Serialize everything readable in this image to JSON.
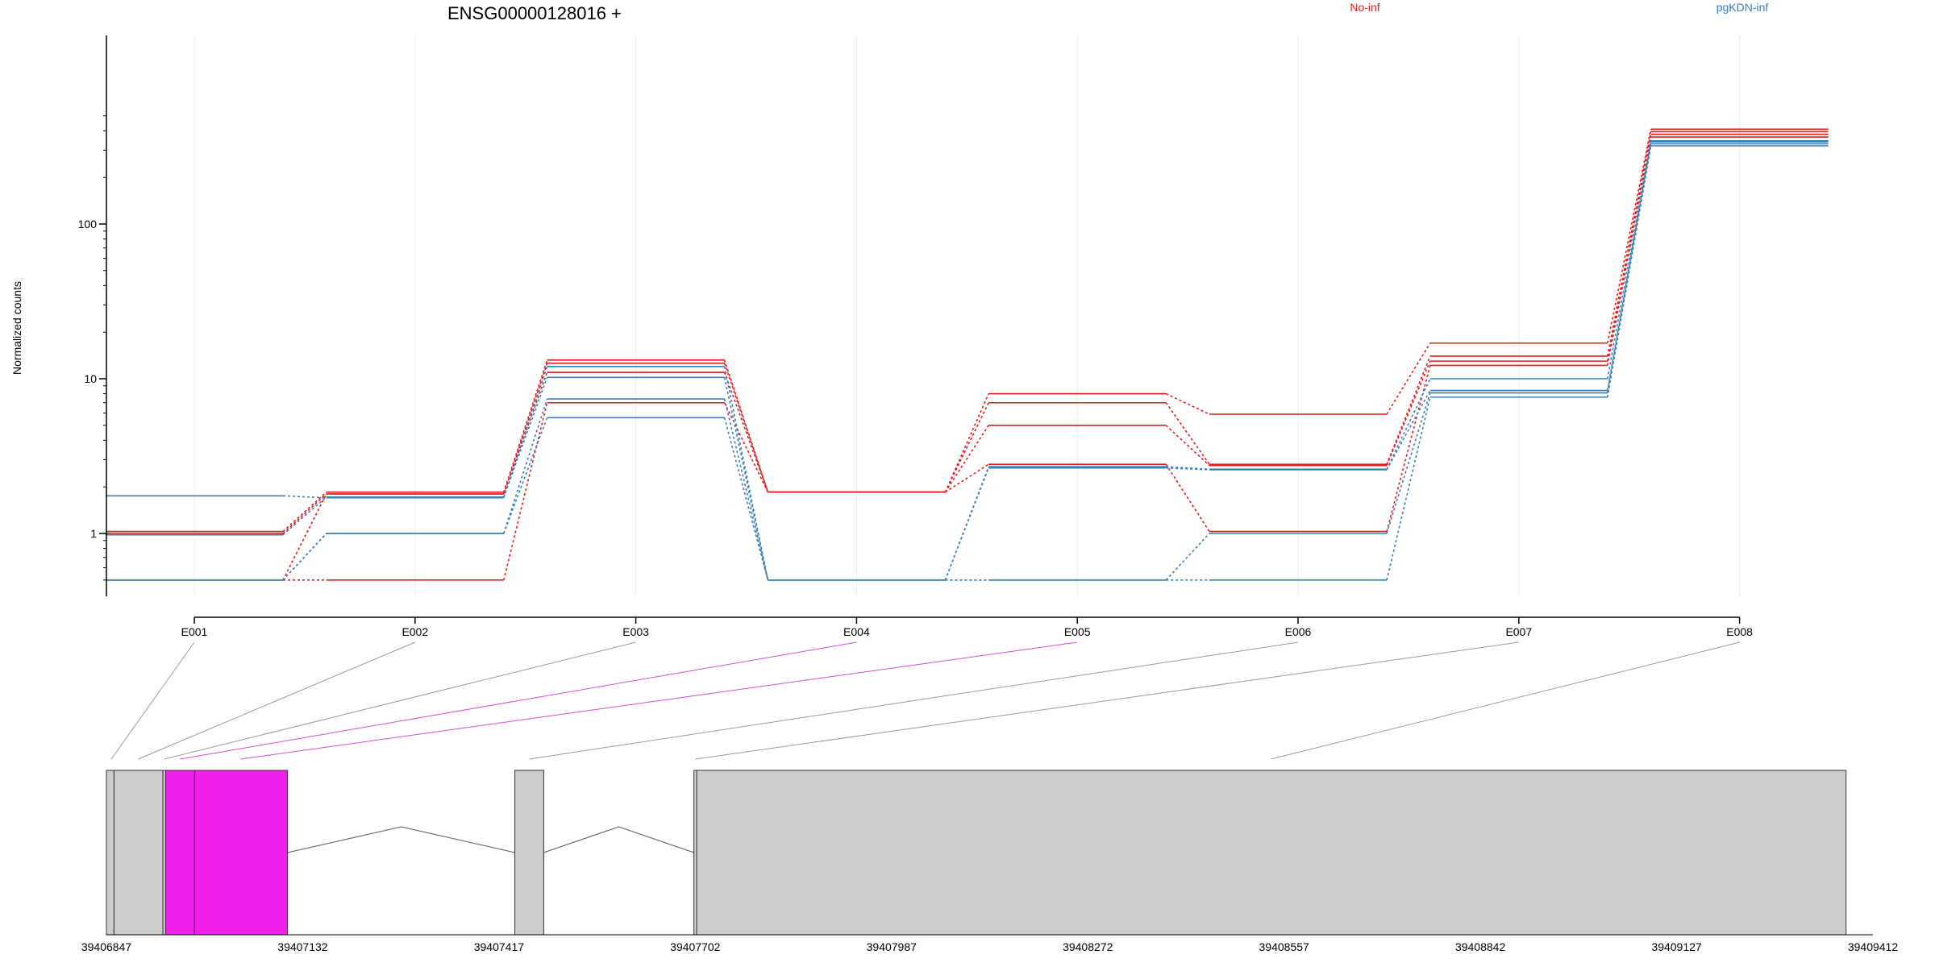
{
  "chart_data": {
    "type": "line",
    "title": "ENSG00000128016 +",
    "ylabel": "Normalized counts",
    "yscale": "log",
    "ylim": [
      0.48,
      500
    ],
    "yticks": [
      1,
      10,
      100
    ],
    "yticklabels": [
      "1",
      "10",
      "100"
    ],
    "categories": [
      "E001",
      "E002",
      "E003",
      "E004",
      "E005",
      "E006",
      "E007",
      "E008"
    ],
    "legend": [
      {
        "label": "No-inf",
        "color": "#e41a1c"
      },
      {
        "label": "pgKDN-inf",
        "color": "#377eb8"
      }
    ],
    "series": [
      {
        "group": "No-inf",
        "color": "#e41a1c",
        "values": [
          1.03,
          1.85,
          13.2,
          1.85,
          8.0,
          5.9,
          17.0,
          410
        ]
      },
      {
        "group": "No-inf",
        "color": "#e41a1c",
        "values": [
          1.0,
          1.8,
          12.6,
          1.85,
          7.0,
          2.8,
          14.0,
          395
        ]
      },
      {
        "group": "No-inf",
        "color": "#e41a1c",
        "values": [
          0.5,
          1.8,
          11.0,
          1.85,
          5.0,
          2.75,
          13.0,
          380
        ]
      },
      {
        "group": "No-inf",
        "color": "#e41a1c",
        "values": [
          0.5,
          0.5,
          7.0,
          1.85,
          2.8,
          1.03,
          12.2,
          365
        ]
      },
      {
        "group": "pgKDN-inf",
        "color": "#377eb8",
        "values": [
          1.75,
          1.7,
          12.0,
          0.5,
          2.7,
          2.6,
          10.0,
          345
        ]
      },
      {
        "group": "pgKDN-inf",
        "color": "#377eb8",
        "values": [
          0.98,
          1.72,
          10.2,
          0.5,
          2.65,
          2.58,
          8.4,
          340
        ]
      },
      {
        "group": "pgKDN-inf",
        "color": "#377eb8",
        "values": [
          0.5,
          1.0,
          7.4,
          0.5,
          0.5,
          1.0,
          8.1,
          330
        ]
      },
      {
        "group": "pgKDN-inf",
        "color": "#377eb8",
        "values": [
          0.5,
          1.0,
          5.6,
          0.5,
          0.5,
          0.5,
          7.6,
          320
        ]
      }
    ],
    "gene_model": {
      "coordinate_ticks": [
        "39406847",
        "39407132",
        "39407417",
        "39407702",
        "39407987",
        "39408272",
        "39408557",
        "39408842",
        "39409127",
        "39409412"
      ],
      "coord_range": [
        39406847,
        39409412
      ],
      "exons": [
        {
          "id": "E001",
          "start": 39406847,
          "end": 39406858,
          "fill": "#cccccc",
          "link_color": "#999999"
        },
        {
          "id": "E002",
          "start": 39406858,
          "end": 39406929,
          "fill": "#cccccc",
          "link_color": "#999999"
        },
        {
          "id": "E003",
          "start": 39406929,
          "end": 39406933,
          "fill": "#cccccc",
          "link_color": "#999999"
        },
        {
          "id": "E004",
          "start": 39406933,
          "end": 39406975,
          "fill": "#f01fec",
          "link_color": "#d050d0"
        },
        {
          "id": "E005",
          "start": 39406975,
          "end": 39407110,
          "fill": "#f01fec",
          "link_color": "#d050d0"
        },
        {
          "id": "E006",
          "start": 39407440,
          "end": 39407482,
          "fill": "#cccccc",
          "link_color": "#999999"
        },
        {
          "id": "E007",
          "start": 39407700,
          "end": 39407704,
          "fill": "#cccccc",
          "link_color": "#999999"
        },
        {
          "id": "E008",
          "start": 39407704,
          "end": 39409373,
          "fill": "#cccccc",
          "link_color": "#999999"
        }
      ],
      "link_anchor_coords": [
        39406854,
        39406893,
        39406931,
        39406954,
        39407042,
        39407461,
        39407702,
        39408538
      ],
      "introns": [
        [
          39407110,
          39407440
        ],
        [
          39407482,
          39407700
        ]
      ]
    }
  }
}
